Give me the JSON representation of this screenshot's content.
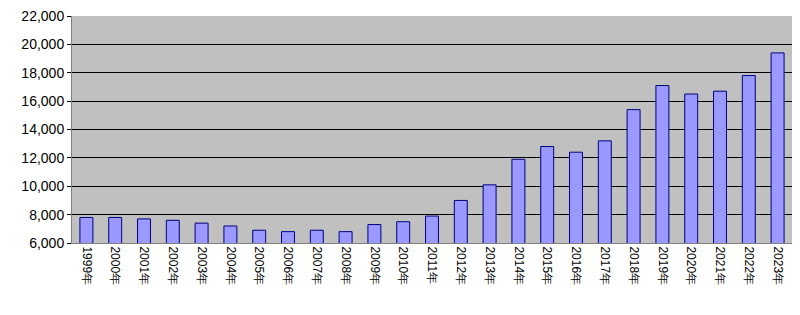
{
  "chart_data": {
    "type": "bar",
    "categories": [
      "1999年",
      "2000年",
      "2001年",
      "2002年",
      "2003年",
      "2004年",
      "2005年",
      "2006年",
      "2007年",
      "2008年",
      "2009年",
      "2010年",
      "2011年",
      "2012年",
      "2013年",
      "2014年",
      "2015年",
      "2016年",
      "2017年",
      "2018年",
      "2019年",
      "2020年",
      "2021年",
      "2022年",
      "2023年"
    ],
    "values": [
      7800,
      7800,
      7700,
      7600,
      7400,
      7200,
      6900,
      6800,
      6900,
      6800,
      7300,
      7500,
      7900,
      9000,
      10100,
      11900,
      12800,
      12400,
      13200,
      15400,
      17100,
      16500,
      16700,
      17800,
      19400
    ],
    "color": "#9999ff",
    "ylim": [
      6000,
      22000
    ],
    "yticks": [
      {
        "value": 6000,
        "label": "6,000"
      },
      {
        "value": 8000,
        "label": "8,000"
      },
      {
        "value": 10000,
        "label": "10,000"
      },
      {
        "value": 12000,
        "label": "12,000"
      },
      {
        "value": 14000,
        "label": "14,000"
      },
      {
        "value": 16000,
        "label": "16,000"
      },
      {
        "value": 18000,
        "label": "18,000"
      },
      {
        "value": 20000,
        "label": "20,000"
      },
      {
        "value": 22000,
        "label": "22,000"
      }
    ],
    "grid": true
  }
}
